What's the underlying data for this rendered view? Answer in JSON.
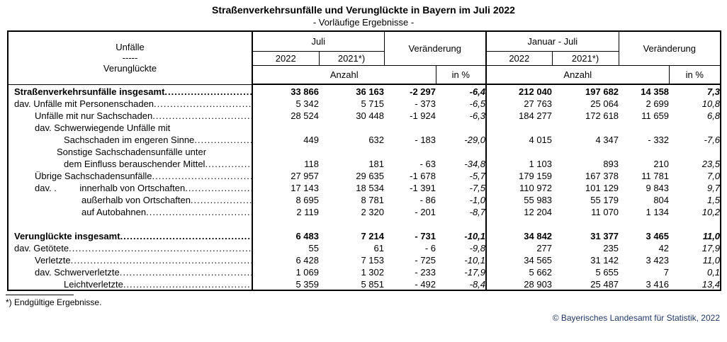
{
  "page": {
    "title": "Straßenverkehrsunfälle und Verunglückte in Bayern im Juli 2022",
    "subtitle": "- Vorläufige Ergebnisse -",
    "footnote": "*) Endgültige Ergebnisse.",
    "copyright": "© Bayerisches Landesamt für Statistik, 2022",
    "copyright_color": "#1f3864",
    "text_color": "#000000",
    "background_color": "#ffffff"
  },
  "table": {
    "header": {
      "label_top": "Unfälle",
      "label_mid": "-----",
      "label_bottom": "Verunglückte",
      "group_jul": "Juli",
      "group_jan": "Januar - Juli",
      "year_current": "2022",
      "year_previous": "2021*)",
      "change": "Veränderung",
      "count": "Anzahl",
      "percent": "in %"
    },
    "sections": [
      {
        "rows": [
          {
            "label": "Straßenverkehrsunfälle insgesamt",
            "indent": 0,
            "bold": true,
            "leaders": true,
            "values": [
              "33 866",
              "36 163",
              "-2 297",
              "-6,4",
              "212 040",
              "197 682",
              "14 358",
              "7,3"
            ]
          },
          {
            "label": "dav. Unfälle mit Personenschaden",
            "indent": 0,
            "bold": false,
            "leaders": true,
            "values": [
              "5 342",
              "5 715",
              "- 373",
              "-6,5",
              "27 763",
              "25 064",
              "2 699",
              "10,8"
            ]
          },
          {
            "label": "Unfälle mit nur Sachschaden",
            "indent": 29,
            "bold": false,
            "leaders": true,
            "values": [
              "28 524",
              "30 448",
              "-1 924",
              "-6,3",
              "184 277",
              "172 618",
              "11 659",
              "6,8"
            ]
          },
          {
            "label": "dav. Schwerwiegende Unfälle mit",
            "indent": 29,
            "bold": false,
            "leaders": false,
            "values": []
          },
          {
            "label": "Sachschaden im engeren Sinne",
            "indent": 70,
            "bold": false,
            "leaders": true,
            "values": [
              "449",
              "632",
              "- 183",
              "-29,0",
              "4 015",
              "4 347",
              "- 332",
              "-7,6"
            ]
          },
          {
            "label": "Sonstige Sachschadensunfälle unter",
            "indent": 60,
            "bold": false,
            "leaders": false,
            "values": []
          },
          {
            "label": "dem Einfluss berauschender Mittel",
            "indent": 70,
            "bold": false,
            "leaders": true,
            "values": [
              "118",
              "181",
              "- 63",
              "-34,8",
              "1 103",
              "893",
              "210",
              "23,5"
            ]
          },
          {
            "label": "Übrige Sachschadensunfälle",
            "indent": 29,
            "bold": false,
            "leaders": true,
            "values": [
              "27 957",
              "29 635",
              "-1 678",
              "-5,7",
              "179 159",
              "167 378",
              "11 781",
              "7,0"
            ]
          },
          {
            "label": "dav. .         innerhalb von Ortschaften",
            "indent": 29,
            "bold": false,
            "leaders": true,
            "values": [
              "17 143",
              "18 534",
              "-1 391",
              "-7,5",
              "110 972",
              "101 129",
              "9 843",
              "9,7"
            ]
          },
          {
            "label": "außerhalb von Ortschaften",
            "indent": 95,
            "bold": false,
            "leaders": true,
            "values": [
              "8 695",
              "8 781",
              "- 86",
              "-1,0",
              "55 983",
              "55 179",
              "804",
              "1,5"
            ]
          },
          {
            "label": "auf Autobahnen",
            "indent": 95,
            "bold": false,
            "leaders": true,
            "values": [
              "2 119",
              "2 320",
              "- 201",
              "-8,7",
              "12 204",
              "11 070",
              "1 134",
              "10,2"
            ]
          }
        ]
      },
      {
        "rows": [
          {
            "label": "Verunglückte insgesamt",
            "indent": 0,
            "bold": true,
            "leaders": true,
            "values": [
              "6 483",
              "7 214",
              "- 731",
              "-10,1",
              "34 842",
              "31 377",
              "3 465",
              "11,0"
            ]
          },
          {
            "label": "dav. Getötete",
            "indent": 0,
            "bold": false,
            "leaders": true,
            "values": [
              "55",
              "61",
              "- 6",
              "-9,8",
              "277",
              "235",
              "42",
              "17,9"
            ]
          },
          {
            "label": "Verletzte",
            "indent": 29,
            "bold": false,
            "leaders": true,
            "values": [
              "6 428",
              "7 153",
              "- 725",
              "-10,1",
              "34 565",
              "31 142",
              "3 423",
              "11,0"
            ]
          },
          {
            "label": "dav. Schwerverletzte",
            "indent": 29,
            "bold": false,
            "leaders": true,
            "values": [
              "1 069",
              "1 302",
              "- 233",
              "-17,9",
              "5 662",
              "5 655",
              "7",
              "0,1"
            ]
          },
          {
            "label": "Leichtverletzte",
            "indent": 70,
            "bold": false,
            "leaders": true,
            "values": [
              "5 359",
              "5 851",
              "- 492",
              "-8,4",
              "28 903",
              "25 487",
              "3 416",
              "13,4"
            ]
          }
        ]
      }
    ]
  }
}
